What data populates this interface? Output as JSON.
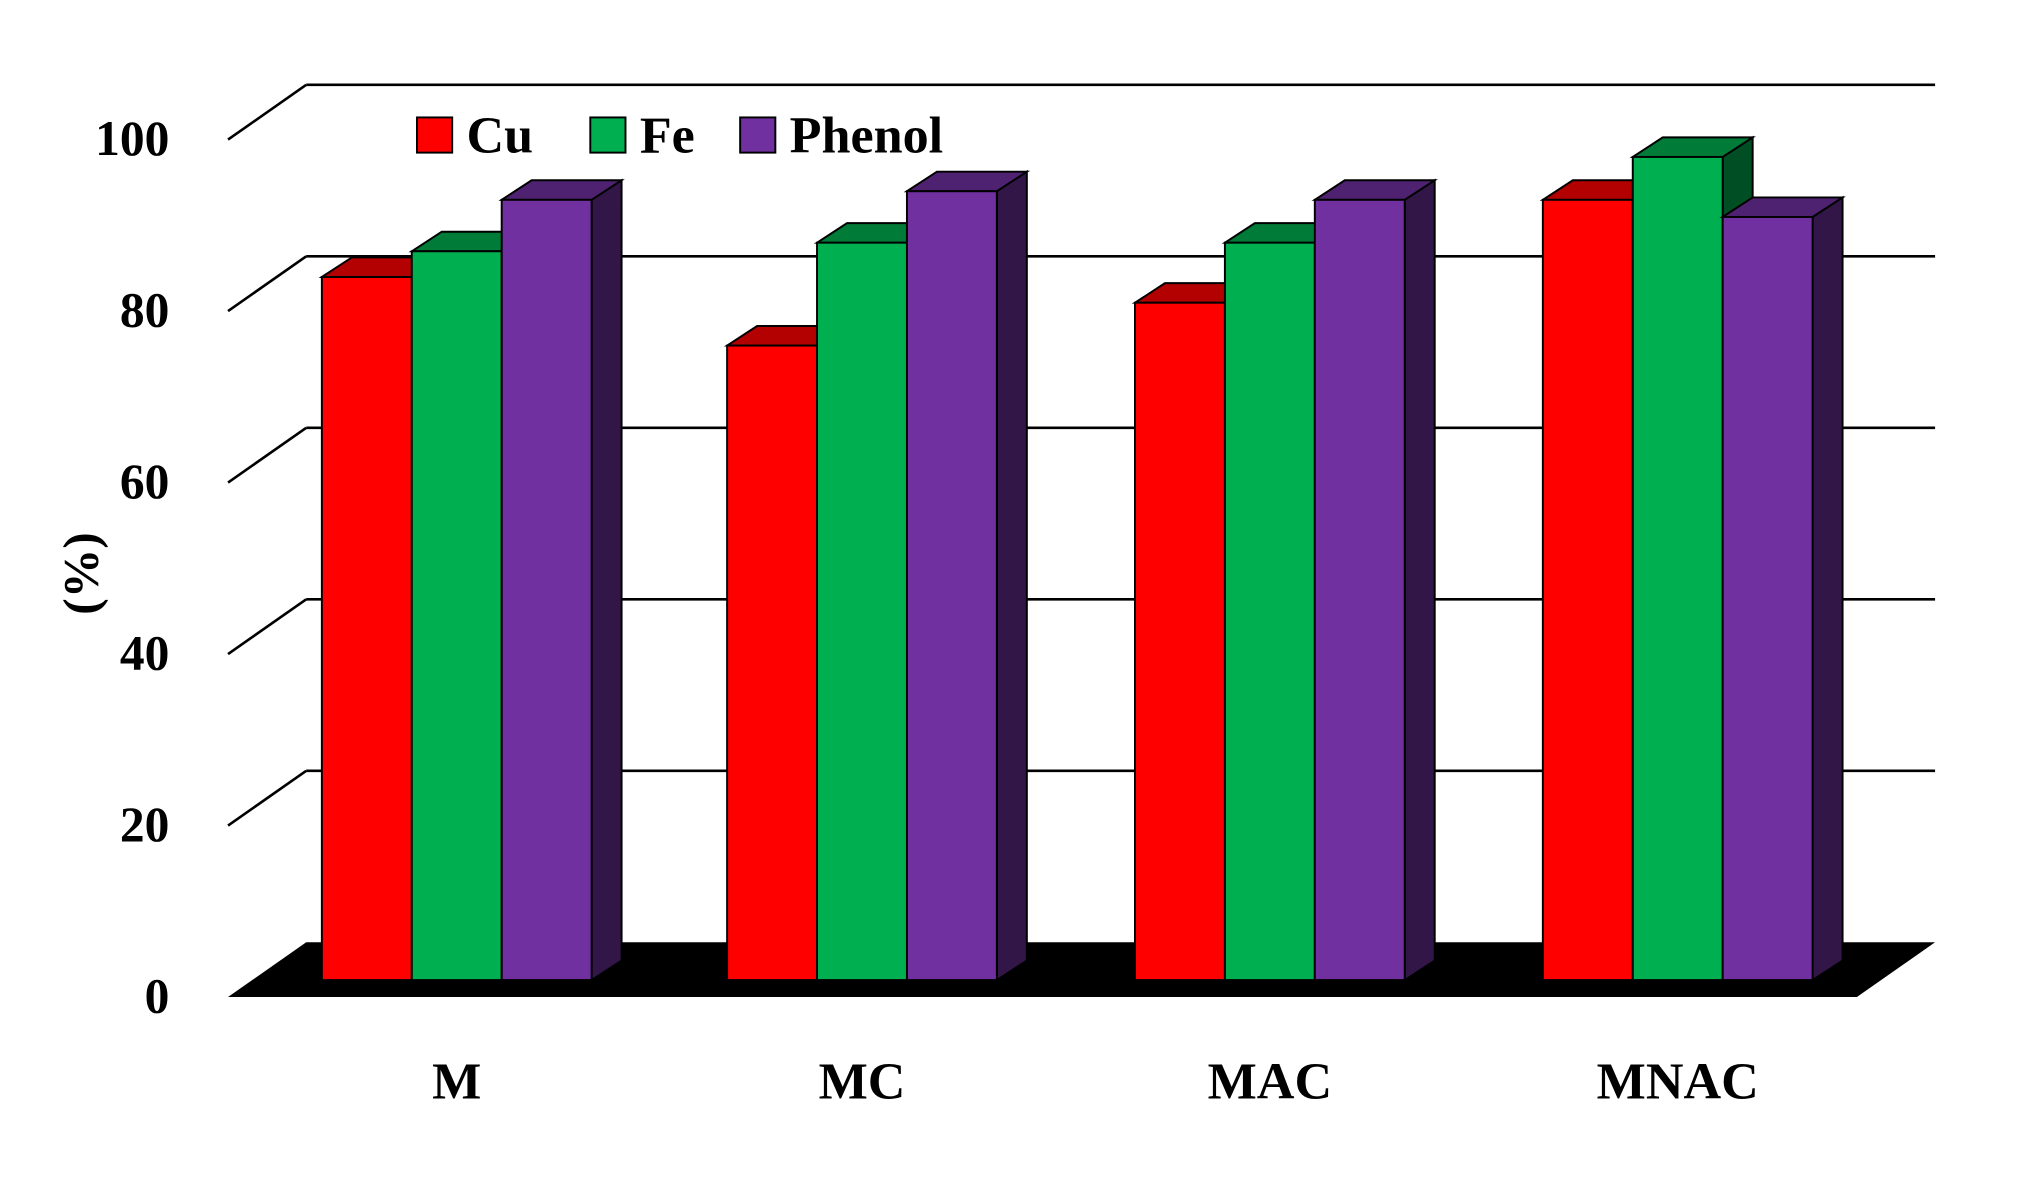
{
  "chart_data": {
    "type": "bar",
    "title": "",
    "xlabel": "",
    "ylabel": "(%)",
    "ylim": [
      0,
      100
    ],
    "yticks": [
      0,
      20,
      40,
      60,
      80,
      100
    ],
    "categories": [
      "M",
      "MC",
      "MAC",
      "MNAC"
    ],
    "legend_position": "top-left",
    "series": [
      {
        "name": "Cu",
        "color": "#ff0000",
        "values": [
          82,
          74,
          79,
          91
        ]
      },
      {
        "name": "Fe",
        "color": "#00b050",
        "values": [
          85,
          86,
          86,
          96
        ]
      },
      {
        "name": "Phenol",
        "color": "#7030a0",
        "values": [
          91,
          92,
          91,
          89
        ]
      }
    ],
    "grid": true
  }
}
